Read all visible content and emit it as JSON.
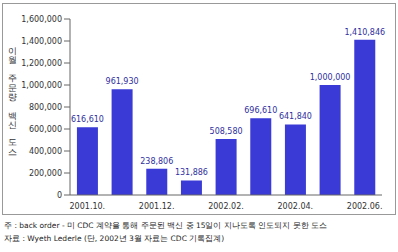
{
  "chart_data": {
    "type": "bar",
    "y_label": "이월 주문량 백신 도스",
    "categories": [
      "2001.10.",
      null,
      "2001.12.",
      null,
      "2002.02.",
      null,
      "2002.04.",
      null,
      "2002.06."
    ],
    "values": [
      616610,
      961930,
      238806,
      131886,
      508580,
      696610,
      641840,
      1000000,
      1410846
    ],
    "value_labels": [
      "616,610",
      "961,930",
      "238,806",
      "131,886",
      "508,580",
      "696,610",
      "641,840",
      "1,000,000",
      "1,410,846"
    ],
    "data_labels": true,
    "color": "#3a3ad6",
    "ylim": [
      0,
      1600000
    ],
    "yticks": [
      {
        "value": 0,
        "label": "0"
      },
      {
        "value": 200000,
        "label": "200,000"
      },
      {
        "value": 400000,
        "label": "400,000"
      },
      {
        "value": 600000,
        "label": "600,000"
      },
      {
        "value": 800000,
        "label": "800,000"
      },
      {
        "value": 1000000,
        "label": "1,000,000"
      },
      {
        "value": 1200000,
        "label": "1,200,000"
      },
      {
        "value": 1400000,
        "label": "1,400,000"
      },
      {
        "value": 1600000,
        "label": "1,600,000"
      }
    ],
    "grid": false,
    "notes": [
      "주 : back order - 미 CDC 계약을 통해 주문된 백신 중 15일이 지나도록 인도되지 못한 도스",
      "자료 : Wyeth Lederle (단, 2002년 3월 자료는 CDC 기록집계)"
    ]
  }
}
